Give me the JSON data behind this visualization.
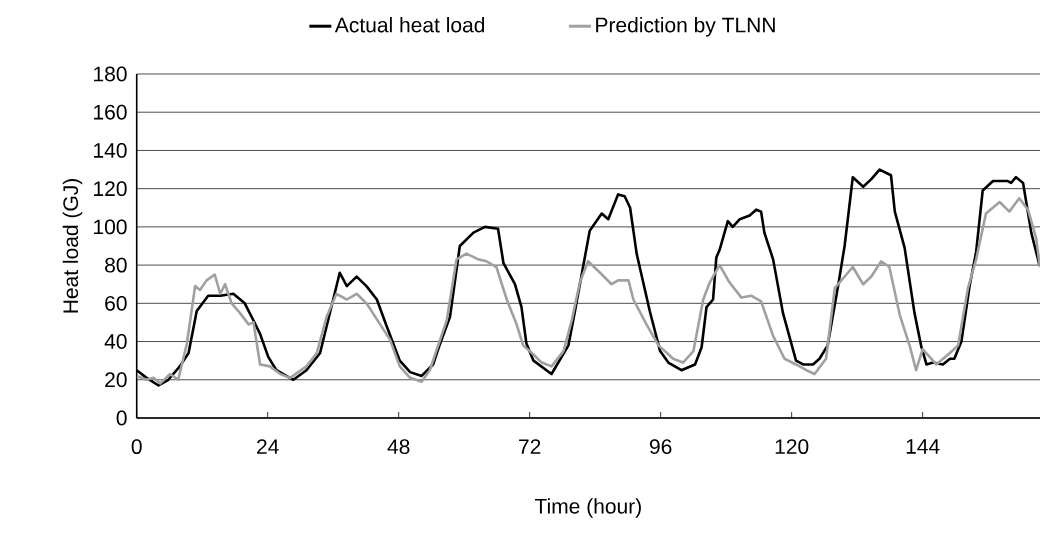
{
  "chart_data": {
    "type": "line",
    "xlabel": "Time (hour)",
    "ylabel": "Heat load (GJ)",
    "xlim": [
      0,
      165.5
    ],
    "ylim": [
      0,
      180
    ],
    "xticks": [
      0,
      24,
      48,
      72,
      96,
      120,
      144
    ],
    "yticks": [
      0,
      20,
      40,
      60,
      80,
      100,
      120,
      140,
      160,
      180
    ],
    "grid": "y",
    "legend": "top",
    "marker": "none",
    "line_style": "solid",
    "series": [
      {
        "name": "Actual heat load",
        "color": "#000000",
        "x": [
          0,
          1.8,
          4,
          5.8,
          7.9,
          9.5,
          11,
          13.1,
          15.3,
          17.7,
          19.8,
          21.4,
          22.6,
          24.1,
          25.6,
          28.7,
          31.1,
          33.6,
          35.4,
          37.2,
          38.5,
          40.3,
          42.1,
          44,
          45.8,
          48.2,
          50.1,
          52.2,
          54.3,
          55.6,
          57.4,
          59.2,
          61.7,
          63.8,
          66.2,
          67.2,
          69.3,
          70.5,
          71.4,
          72.7,
          76,
          79.1,
          80.3,
          83,
          85.2,
          86.4,
          88.2,
          89.4,
          90.4,
          91.6,
          94,
          95.9,
          97.4,
          99.8,
          102.3,
          103.5,
          104.4,
          105.6,
          106.2,
          106.8,
          108.3,
          109.2,
          110.5,
          112.3,
          113.5,
          114.4,
          115,
          116.6,
          118.4,
          120.8,
          122.1,
          123.9,
          125.1,
          126.6,
          128.5,
          129.7,
          131.2,
          133.1,
          134.6,
          136.1,
          138.2,
          138.9,
          140.7,
          142.5,
          143.7,
          144.7,
          145.9,
          147.7,
          149,
          149.8,
          151.1,
          152.6,
          153.8,
          155,
          156.9,
          159.6,
          160.2,
          161.1,
          162.4,
          163.9,
          165.4
        ],
        "values": [
          25,
          21,
          17,
          20,
          27,
          34,
          56,
          64,
          64,
          65,
          60,
          51,
          44,
          32,
          25,
          20,
          25,
          34,
          55,
          76,
          69,
          74,
          69,
          62,
          48,
          30,
          24,
          22,
          28,
          39,
          53,
          90,
          97,
          100,
          99,
          81,
          70,
          58,
          39,
          30,
          23,
          38,
          56,
          98,
          107,
          104,
          117,
          116,
          110,
          86,
          56,
          35,
          29,
          25,
          28,
          37,
          58,
          62,
          84,
          88,
          103,
          100,
          104,
          106,
          109,
          108,
          97,
          83,
          55,
          30,
          28,
          28,
          31,
          38,
          69,
          90,
          126,
          121,
          125,
          130,
          127,
          108,
          89,
          55,
          38,
          28,
          29,
          28,
          31,
          31,
          40,
          69,
          87,
          119,
          124,
          124,
          123,
          126,
          123,
          97,
          80
        ]
      },
      {
        "name": "Prediction by TLNN",
        "color": "#a0a0a0",
        "x": [
          0,
          1.8,
          3.1,
          4.3,
          6.1,
          7.6,
          9.2,
          10.7,
          11.6,
          12.8,
          14.3,
          15.3,
          16.2,
          17.4,
          18.9,
          20.5,
          21.4,
          22.6,
          24.4,
          26.3,
          28.1,
          31.1,
          33,
          34.8,
          36.6,
          38.5,
          40.3,
          42.1,
          44.6,
          46.4,
          48.2,
          50.1,
          52.2,
          53.7,
          55.6,
          56.8,
          58.6,
          60.4,
          62.6,
          64.1,
          65.9,
          67.8,
          69.6,
          70.8,
          72.4,
          74.2,
          76,
          78.2,
          79.7,
          81.2,
          82.7,
          84.9,
          87,
          88.2,
          90.1,
          91,
          93.4,
          95.6,
          98.3,
          100.1,
          102,
          103.8,
          105,
          106.8,
          108.6,
          110.8,
          112.6,
          114.4,
          116.6,
          118.7,
          120.8,
          122.7,
          124.2,
          126.3,
          127.9,
          129.4,
          131.2,
          133.1,
          134.6,
          136.4,
          137.9,
          139.8,
          141.6,
          142.8,
          144,
          146.5,
          149,
          150.5,
          152.3,
          153.8,
          155.6,
          158.1,
          159.9,
          161.7,
          163.3,
          164.8,
          165.5
        ],
        "values": [
          22,
          20,
          21,
          18,
          23,
          20,
          39,
          69,
          67,
          72,
          75,
          65,
          70,
          60,
          55,
          49,
          50,
          28,
          27,
          23,
          21,
          27,
          34,
          53,
          65,
          62,
          65,
          60,
          49,
          41,
          27,
          21,
          19,
          25,
          41,
          51,
          83,
          86,
          83,
          82,
          79,
          62,
          49,
          38,
          34,
          29,
          27,
          35,
          51,
          71,
          82,
          76,
          70,
          72,
          72,
          62,
          49,
          38,
          31,
          29,
          35,
          62,
          71,
          80,
          71,
          63,
          64,
          61,
          43,
          31,
          28,
          25,
          23,
          31,
          68,
          73,
          79,
          70,
          74,
          82,
          79,
          54,
          38,
          25,
          36,
          28,
          34,
          38,
          68,
          83,
          107,
          113,
          108,
          115,
          109,
          94,
          79
        ]
      }
    ]
  }
}
